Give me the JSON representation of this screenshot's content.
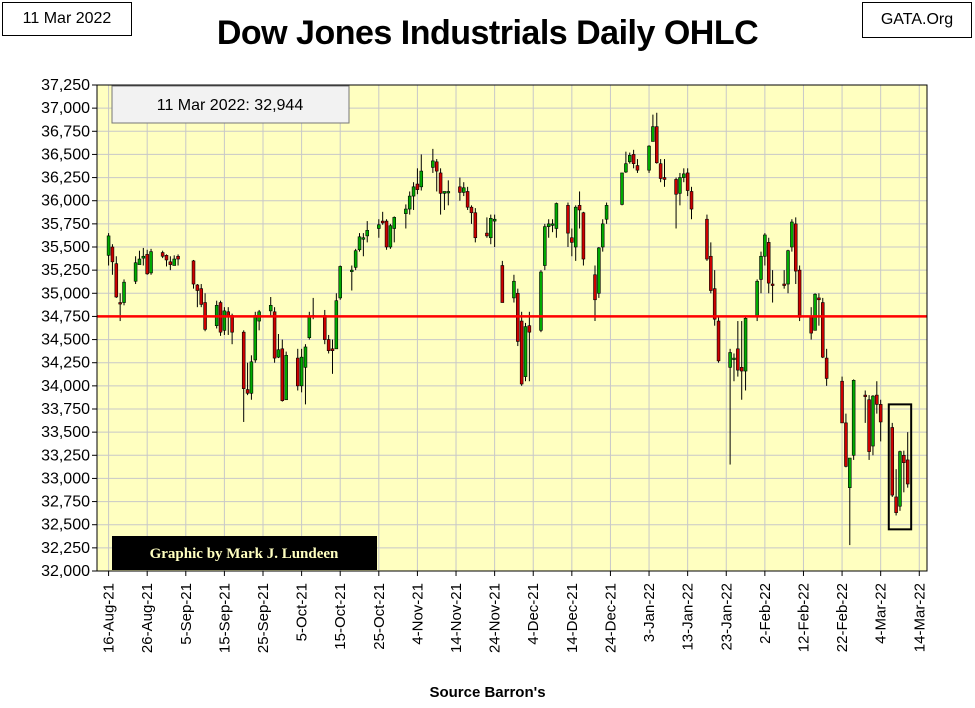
{
  "header": {
    "date": "11 Mar 2022",
    "site": "GATA.Org",
    "title": "Dow Jones Industrials Daily OHLC"
  },
  "annotation": "11 Mar 2022: 32,944",
  "credit": "Graphic by Mark J. Lundeen",
  "footer": {
    "source": "Source Barron's"
  },
  "colors": {
    "plot_bg": "#FFFFC0",
    "up": "#00AA00",
    "down": "#CC0000",
    "ref_line": "#FF0000",
    "grid": "#C8C8C8"
  },
  "chart_data": {
    "type": "ohlc",
    "title": "Dow Jones Industrials Daily OHLC",
    "ylim": [
      32000,
      37250
    ],
    "yticks": [
      32000,
      32250,
      32500,
      32750,
      33000,
      33250,
      33500,
      33750,
      34000,
      34250,
      34500,
      34750,
      35000,
      35250,
      35500,
      35750,
      36000,
      36250,
      36500,
      36750,
      37000,
      37250
    ],
    "ytick_labels": [
      "32,000",
      "32,250",
      "32,500",
      "32,750",
      "33,000",
      "33,250",
      "33,500",
      "33,750",
      "34,000",
      "34,250",
      "34,500",
      "34,750",
      "35,000",
      "35,250",
      "35,500",
      "35,750",
      "36,000",
      "36,250",
      "36,500",
      "36,750",
      "37,000",
      "37,250"
    ],
    "xticks": [
      "16-Aug-21",
      "26-Aug-21",
      "5-Sep-21",
      "15-Sep-21",
      "25-Sep-21",
      "5-Oct-21",
      "15-Oct-21",
      "25-Oct-21",
      "4-Nov-21",
      "14-Nov-21",
      "24-Nov-21",
      "4-Dec-21",
      "14-Dec-21",
      "24-Dec-21",
      "3-Jan-22",
      "13-Jan-22",
      "23-Jan-22",
      "2-Feb-22",
      "12-Feb-22",
      "22-Feb-22",
      "4-Mar-22",
      "14-Mar-22"
    ],
    "reference_line": 34750,
    "grid": true,
    "highlight_box": {
      "from": "2022-03-07",
      "to": "2022-03-11",
      "low": 32450,
      "high": 33800
    },
    "candles": [
      [
        "2021-08-16",
        35410,
        35650,
        35300,
        35620
      ],
      [
        "2021-08-17",
        35500,
        35530,
        35200,
        35340
      ],
      [
        "2021-08-18",
        35320,
        35400,
        34950,
        34960
      ],
      [
        "2021-08-19",
        34900,
        35000,
        34700,
        34890
      ],
      [
        "2021-08-20",
        34900,
        35150,
        34870,
        35120
      ],
      [
        "2021-08-23",
        35130,
        35400,
        35100,
        35330
      ],
      [
        "2021-08-24",
        35310,
        35460,
        35350,
        35370
      ],
      [
        "2021-08-25",
        35380,
        35490,
        35300,
        35400
      ],
      [
        "2021-08-26",
        35420,
        35470,
        35200,
        35210
      ],
      [
        "2021-08-27",
        35220,
        35480,
        35200,
        35450
      ],
      [
        "2021-08-30",
        35440,
        35460,
        35380,
        35400
      ],
      [
        "2021-08-31",
        35410,
        35420,
        35290,
        35360
      ],
      [
        "2021-09-01",
        35340,
        35400,
        35250,
        35310
      ],
      [
        "2021-09-02",
        35300,
        35410,
        35300,
        35370
      ],
      [
        "2021-09-03",
        35400,
        35420,
        35300,
        35370
      ],
      [
        "2021-09-07",
        35350,
        35360,
        35050,
        35100
      ],
      [
        "2021-09-08",
        35090,
        35100,
        34850,
        35030
      ],
      [
        "2021-09-09",
        35050,
        35100,
        34850,
        34880
      ],
      [
        "2021-09-10",
        34900,
        35000,
        34590,
        34610
      ],
      [
        "2021-09-13",
        34650,
        34920,
        34620,
        34870
      ],
      [
        "2021-09-14",
        34900,
        34920,
        34540,
        34580
      ],
      [
        "2021-09-15",
        34600,
        34850,
        34550,
        34810
      ],
      [
        "2021-09-16",
        34800,
        34850,
        34550,
        34750
      ],
      [
        "2021-09-17",
        34760,
        34780,
        34450,
        34580
      ],
      [
        "2021-09-20",
        34580,
        34600,
        33610,
        33970
      ],
      [
        "2021-09-21",
        33960,
        34250,
        33900,
        33920
      ],
      [
        "2021-09-22",
        33920,
        34330,
        33850,
        34260
      ],
      [
        "2021-09-23",
        34280,
        34800,
        34250,
        34760
      ],
      [
        "2021-09-24",
        34700,
        34820,
        34600,
        34800
      ],
      [
        "2021-09-27",
        34810,
        34960,
        34760,
        34870
      ],
      [
        "2021-09-28",
        34800,
        34850,
        34250,
        34300
      ],
      [
        "2021-09-29",
        34310,
        34560,
        34300,
        34390
      ],
      [
        "2021-09-30",
        34400,
        34500,
        33830,
        33840
      ],
      [
        "2021-10-01",
        33850,
        34370,
        33850,
        34330
      ],
      [
        "2021-10-04",
        34300,
        34400,
        33950,
        34000
      ],
      [
        "2021-10-05",
        34000,
        34400,
        33930,
        34310
      ],
      [
        "2021-10-06",
        34200,
        34450,
        33800,
        34420
      ],
      [
        "2021-10-07",
        34520,
        34800,
        34500,
        34750
      ],
      [
        "2021-10-08",
        34760,
        34950,
        34720,
        34750
      ],
      [
        "2021-10-11",
        34760,
        34820,
        34450,
        34500
      ],
      [
        "2021-10-12",
        34500,
        34550,
        34350,
        34380
      ],
      [
        "2021-10-13",
        34400,
        34500,
        34130,
        34380
      ],
      [
        "2021-10-14",
        34400,
        35000,
        34400,
        34920
      ],
      [
        "2021-10-15",
        34950,
        35300,
        34930,
        35290
      ],
      [
        "2021-10-18",
        35250,
        35300,
        35030,
        35250
      ],
      [
        "2021-10-19",
        35280,
        35480,
        35250,
        35460
      ],
      [
        "2021-10-20",
        35470,
        35650,
        35450,
        35610
      ],
      [
        "2021-10-21",
        35600,
        35650,
        35400,
        35600
      ],
      [
        "2021-10-22",
        35620,
        35780,
        35550,
        35680
      ],
      [
        "2021-10-25",
        35700,
        35800,
        35600,
        35740
      ],
      [
        "2021-10-26",
        35780,
        35880,
        35740,
        35760
      ],
      [
        "2021-10-27",
        35780,
        35800,
        35470,
        35500
      ],
      [
        "2021-10-28",
        35500,
        35750,
        35480,
        35730
      ],
      [
        "2021-10-29",
        35700,
        35830,
        35550,
        35820
      ],
      [
        "2021-11-01",
        35860,
        35960,
        35700,
        35910
      ],
      [
        "2021-11-02",
        35910,
        36100,
        35850,
        36050
      ],
      [
        "2021-11-03",
        36050,
        36200,
        35900,
        36150
      ],
      [
        "2021-11-04",
        36180,
        36350,
        36070,
        36120
      ],
      [
        "2021-11-05",
        36150,
        36500,
        36110,
        36320
      ],
      [
        "2021-11-08",
        36360,
        36560,
        36300,
        36430
      ],
      [
        "2021-11-09",
        36420,
        36450,
        36100,
        36320
      ],
      [
        "2021-11-10",
        36300,
        36350,
        35850,
        36080
      ],
      [
        "2021-11-11",
        36080,
        36100,
        35900,
        36100
      ],
      [
        "2021-11-12",
        36100,
        36220,
        35950,
        36100
      ],
      [
        "2021-11-15",
        36150,
        36250,
        36000,
        36090
      ],
      [
        "2021-11-16",
        36090,
        36200,
        36050,
        36140
      ],
      [
        "2021-11-17",
        36100,
        36150,
        35900,
        35930
      ],
      [
        "2021-11-18",
        35930,
        35950,
        35750,
        35870
      ],
      [
        "2021-11-19",
        35870,
        35920,
        35550,
        35600
      ],
      [
        "2021-11-22",
        35650,
        35820,
        35600,
        35620
      ],
      [
        "2021-11-23",
        35600,
        35850,
        35530,
        35810
      ],
      [
        "2021-11-24",
        35780,
        35850,
        35500,
        35800
      ],
      [
        "2021-11-26",
        35300,
        35350,
        34900,
        34900
      ],
      [
        "2021-11-29",
        34950,
        35200,
        34900,
        35130
      ],
      [
        "2021-11-30",
        35000,
        35050,
        34430,
        34480
      ],
      [
        "2021-12-01",
        34700,
        34800,
        34000,
        34020
      ],
      [
        "2021-12-02",
        34100,
        34680,
        34050,
        34640
      ],
      [
        "2021-12-03",
        34650,
        34800,
        34050,
        34580
      ],
      [
        "2021-12-06",
        34600,
        35250,
        34580,
        35230
      ],
      [
        "2021-12-07",
        35300,
        35750,
        35250,
        35720
      ],
      [
        "2021-12-08",
        35720,
        35800,
        35600,
        35750
      ],
      [
        "2021-12-09",
        35750,
        35800,
        35660,
        35750
      ],
      [
        "2021-12-10",
        35700,
        35980,
        35600,
        35970
      ],
      [
        "2021-12-13",
        35950,
        35980,
        35500,
        35650
      ],
      [
        "2021-12-14",
        35600,
        35700,
        35400,
        35550
      ],
      [
        "2021-12-15",
        35500,
        35950,
        35350,
        35930
      ],
      [
        "2021-12-16",
        35950,
        36100,
        35700,
        35900
      ],
      [
        "2021-12-17",
        35870,
        35880,
        35300,
        35370
      ],
      [
        "2021-12-20",
        35200,
        35300,
        34700,
        34930
      ],
      [
        "2021-12-21",
        35000,
        35500,
        34950,
        35490
      ],
      [
        "2021-12-22",
        35500,
        35800,
        35450,
        35750
      ],
      [
        "2021-12-23",
        35800,
        35980,
        35750,
        35950
      ],
      [
        "2021-12-27",
        35960,
        36300,
        35950,
        36300
      ],
      [
        "2021-12-28",
        36310,
        36530,
        36300,
        36400
      ],
      [
        "2021-12-29",
        36420,
        36520,
        36400,
        36490
      ],
      [
        "2021-12-30",
        36500,
        36550,
        36350,
        36400
      ],
      [
        "2021-12-31",
        36380,
        36450,
        36300,
        36330
      ],
      [
        "2022-01-03",
        36330,
        36600,
        36300,
        36590
      ],
      [
        "2022-01-04",
        36640,
        36930,
        36640,
        36800
      ],
      [
        "2022-01-05",
        36800,
        36950,
        36400,
        36410
      ],
      [
        "2022-01-06",
        36400,
        36450,
        36200,
        36240
      ],
      [
        "2022-01-07",
        36250,
        36450,
        36150,
        36230
      ],
      [
        "2022-01-10",
        36230,
        36250,
        35700,
        36070
      ],
      [
        "2022-01-11",
        36080,
        36300,
        35950,
        36250
      ],
      [
        "2022-01-12",
        36250,
        36350,
        36200,
        36290
      ],
      [
        "2022-01-13",
        36300,
        36350,
        36050,
        36110
      ],
      [
        "2022-01-14",
        36100,
        36150,
        35800,
        35910
      ],
      [
        "2022-01-18",
        35800,
        35850,
        35350,
        35370
      ],
      [
        "2022-01-19",
        35400,
        35550,
        35000,
        35030
      ],
      [
        "2022-01-20",
        35050,
        35250,
        34650,
        34720
      ],
      [
        "2022-01-21",
        34700,
        34750,
        34250,
        34270
      ],
      [
        "2022-01-24",
        34200,
        34400,
        33150,
        34360
      ],
      [
        "2022-01-25",
        34300,
        34350,
        34050,
        34300
      ],
      [
        "2022-01-26",
        34400,
        34700,
        34100,
        34170
      ],
      [
        "2022-01-27",
        34200,
        34700,
        33850,
        34160
      ],
      [
        "2022-01-28",
        34160,
        34740,
        33950,
        34730
      ],
      [
        "2022-01-31",
        34750,
        35150,
        34700,
        35130
      ],
      [
        "2022-02-01",
        35150,
        35450,
        35000,
        35400
      ],
      [
        "2022-02-02",
        35400,
        35650,
        35300,
        35630
      ],
      [
        "2022-02-03",
        35550,
        35600,
        35000,
        35110
      ],
      [
        "2022-02-04",
        35100,
        35250,
        34900,
        35090
      ],
      [
        "2022-02-07",
        35100,
        35250,
        35050,
        35090
      ],
      [
        "2022-02-08",
        35100,
        35470,
        35000,
        35460
      ],
      [
        "2022-02-09",
        35500,
        35800,
        35450,
        35770
      ],
      [
        "2022-02-10",
        35750,
        35820,
        35100,
        35240
      ],
      [
        "2022-02-11",
        35250,
        35300,
        34700,
        34740
      ],
      [
        "2022-02-14",
        34750,
        34850,
        34500,
        34570
      ],
      [
        "2022-02-15",
        34600,
        35000,
        34600,
        34990
      ],
      [
        "2022-02-16",
        34950,
        35000,
        34650,
        34930
      ],
      [
        "2022-02-17",
        34900,
        34950,
        34300,
        34310
      ],
      [
        "2022-02-18",
        34300,
        34400,
        34000,
        34080
      ],
      [
        "2022-02-22",
        34050,
        34100,
        33600,
        33600
      ],
      [
        "2022-02-23",
        33600,
        33700,
        33120,
        33130
      ],
      [
        "2022-02-24",
        32900,
        33200,
        32280,
        33220
      ],
      [
        "2022-02-25",
        33250,
        34070,
        33200,
        34060
      ],
      [
        "2022-02-28",
        33900,
        33950,
        33600,
        33890
      ],
      [
        "2022-03-01",
        33850,
        33900,
        33200,
        33290
      ],
      [
        "2022-03-02",
        33350,
        33900,
        33250,
        33890
      ],
      [
        "2022-03-03",
        33900,
        34050,
        33700,
        33800
      ],
      [
        "2022-03-04",
        33800,
        33850,
        33400,
        33610
      ],
      [
        "2022-03-07",
        33550,
        33600,
        32800,
        32820
      ],
      [
        "2022-03-08",
        32800,
        33100,
        32600,
        32630
      ],
      [
        "2022-03-09",
        32700,
        33300,
        32650,
        33290
      ],
      [
        "2022-03-10",
        33250,
        33300,
        32850,
        33170
      ],
      [
        "2022-03-11",
        33200,
        33500,
        32900,
        32940
      ]
    ]
  }
}
